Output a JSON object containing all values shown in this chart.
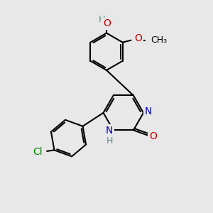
{
  "bg_color": "#e8e8e8",
  "bond_color": "#000000",
  "bond_width": 1.5,
  "atom_colors": {
    "N": "#0000cc",
    "O": "#cc0000",
    "Cl": "#008800",
    "H": "#558888",
    "C": "#000000"
  },
  "font_size": 10,
  "fig_w": 3.0,
  "fig_h": 3.0,
  "dpi": 100
}
